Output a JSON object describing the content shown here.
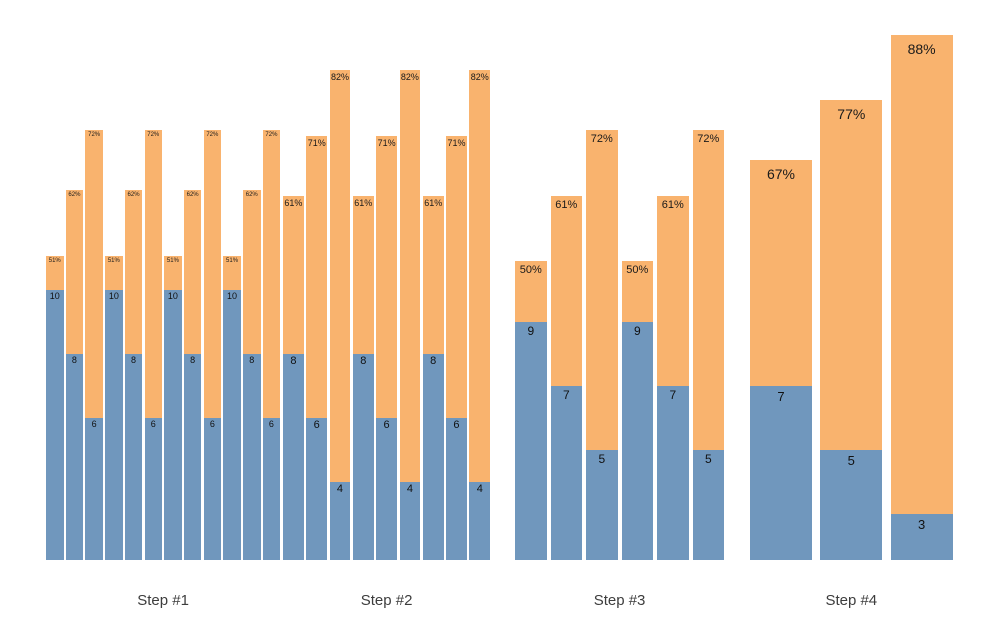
{
  "chart_data": {
    "type": "bar",
    "subtype": "stacked-grouped-funnel",
    "title": "",
    "xlabel": "",
    "ylabel": "",
    "legend": "none",
    "grid": "off",
    "axes": "hidden",
    "colors": {
      "lower_segment": "#7097bd",
      "upper_segment": "#f9b36e",
      "step_label_text": "#3d3d3d",
      "background": "#ffffff"
    },
    "note": "Each bar: lower blue segment labeled with a count, upper orange segment labeled with a percentage at the top. Bar total height is proportional to the percentage; blue height is proportional to the count.",
    "groups": [
      {
        "label": "Step #1",
        "bars": [
          {
            "value": 10,
            "value_label": "10",
            "pct": 51,
            "pct_label": "51%"
          },
          {
            "value": 8,
            "value_label": "8",
            "pct": 62,
            "pct_label": "62%"
          },
          {
            "value": 6,
            "value_label": "6",
            "pct": 72,
            "pct_label": "72%"
          },
          {
            "value": 10,
            "value_label": "10",
            "pct": 51,
            "pct_label": "51%"
          },
          {
            "value": 8,
            "value_label": "8",
            "pct": 62,
            "pct_label": "62%"
          },
          {
            "value": 6,
            "value_label": "6",
            "pct": 72,
            "pct_label": "72%"
          },
          {
            "value": 10,
            "value_label": "10",
            "pct": 51,
            "pct_label": "51%"
          },
          {
            "value": 8,
            "value_label": "8",
            "pct": 62,
            "pct_label": "62%"
          },
          {
            "value": 6,
            "value_label": "6",
            "pct": 72,
            "pct_label": "72%"
          },
          {
            "value": 10,
            "value_label": "10",
            "pct": 51,
            "pct_label": "51%"
          },
          {
            "value": 8,
            "value_label": "8",
            "pct": 62,
            "pct_label": "62%"
          },
          {
            "value": 6,
            "value_label": "6",
            "pct": 72,
            "pct_label": "72%"
          }
        ]
      },
      {
        "label": "Step #2",
        "bars": [
          {
            "value": 8,
            "value_label": "8",
            "pct": 61,
            "pct_label": "61%"
          },
          {
            "value": 6,
            "value_label": "6",
            "pct": 71,
            "pct_label": "71%"
          },
          {
            "value": 4,
            "value_label": "4",
            "pct": 82,
            "pct_label": "82%"
          },
          {
            "value": 8,
            "value_label": "8",
            "pct": 61,
            "pct_label": "61%"
          },
          {
            "value": 6,
            "value_label": "6",
            "pct": 71,
            "pct_label": "71%"
          },
          {
            "value": 4,
            "value_label": "4",
            "pct": 82,
            "pct_label": "82%"
          },
          {
            "value": 8,
            "value_label": "8",
            "pct": 61,
            "pct_label": "61%"
          },
          {
            "value": 6,
            "value_label": "6",
            "pct": 71,
            "pct_label": "71%"
          },
          {
            "value": 4,
            "value_label": "4",
            "pct": 82,
            "pct_label": "82%"
          }
        ]
      },
      {
        "label": "Step #3",
        "bars": [
          {
            "value": 9,
            "value_label": "9",
            "pct": 50,
            "pct_label": "50%"
          },
          {
            "value": 7,
            "value_label": "7",
            "pct": 61,
            "pct_label": "61%"
          },
          {
            "value": 5,
            "value_label": "5",
            "pct": 72,
            "pct_label": "72%"
          },
          {
            "value": 9,
            "value_label": "9",
            "pct": 50,
            "pct_label": "50%"
          },
          {
            "value": 7,
            "value_label": "7",
            "pct": 61,
            "pct_label": "61%"
          },
          {
            "value": 5,
            "value_label": "5",
            "pct": 72,
            "pct_label": "72%"
          }
        ]
      },
      {
        "label": "Step #4",
        "bars": [
          {
            "value": 7,
            "value_label": "7",
            "pct": 67,
            "pct_label": "67%"
          },
          {
            "value": 5,
            "value_label": "5",
            "pct": 77,
            "pct_label": "77%"
          },
          {
            "value": 3,
            "value_label": "3",
            "pct": 88,
            "pct_label": "88%"
          }
        ]
      }
    ]
  }
}
